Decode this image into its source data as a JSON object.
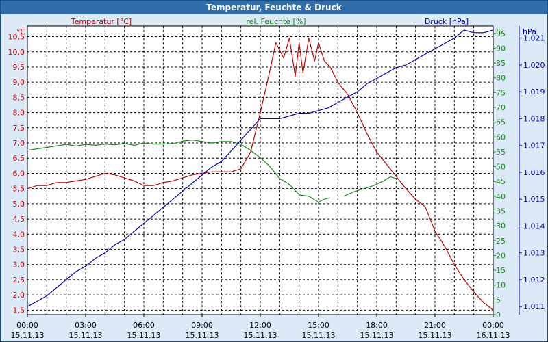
{
  "window_title": "Temperatur, Feuchte & Druck",
  "colors": {
    "temperature": "#c00000",
    "humidity": "#1a8a1a",
    "pressure": "#0000b4",
    "background": "#dce9f7",
    "plot": "#ffffff",
    "grid": "#000000"
  },
  "chart_data": {
    "type": "line",
    "title": "Temperatur, Feuchte & Druck",
    "x_ticks": [
      {
        "time": "00:00",
        "date": "15.11.13"
      },
      {
        "time": "03:00",
        "date": "15.11.13"
      },
      {
        "time": "06:00",
        "date": "15.11.13"
      },
      {
        "time": "09:00",
        "date": "15.11.13"
      },
      {
        "time": "12:00",
        "date": "15.11.13"
      },
      {
        "time": "15:00",
        "date": "15.11.13"
      },
      {
        "time": "18:00",
        "date": "15.11.13"
      },
      {
        "time": "21:00",
        "date": "15.11.13"
      },
      {
        "time": "00:00",
        "date": "16.11.13"
      }
    ],
    "xlim_hours": [
      0,
      24
    ],
    "axes": {
      "temperature": {
        "unit": "°C",
        "legend": "Temperatur [°C]",
        "ylim": [
          1.35,
          10.85
        ],
        "ticks": [
          "1,5",
          "2,0",
          "2,5",
          "3,0",
          "3,5",
          "4,0",
          "4,5",
          "5,0",
          "5,5",
          "6,0",
          "6,5",
          "7,0",
          "7,5",
          "8,0",
          "8,5",
          "9,0",
          "9,5",
          "10,0",
          "10,5"
        ]
      },
      "humidity": {
        "unit": "%",
        "legend": "rel. Feuchte [%]",
        "ylim": [
          0,
          97.5
        ],
        "ticks": [
          "0",
          "5",
          "10",
          "15",
          "20",
          "25",
          "30",
          "35",
          "40",
          "45",
          "50",
          "55",
          "60",
          "65",
          "70",
          "75",
          "80",
          "85",
          "90",
          "95"
        ]
      },
      "pressure": {
        "unit": "hPa",
        "legend": "Druck [hPa]",
        "ylim": [
          1010.7,
          1021.45
        ],
        "ticks": [
          "1.011",
          "1.012",
          "1.013",
          "1.014",
          "1.015",
          "1.016",
          "1.017",
          "1.018",
          "1.019",
          "1.020",
          "1.021"
        ]
      }
    },
    "series": [
      {
        "name": "Temperatur [°C]",
        "axis": "temperature",
        "x": [
          0,
          0.5,
          1,
          1.5,
          2,
          2.5,
          3,
          3.5,
          4,
          4.5,
          5,
          5.5,
          6,
          6.5,
          7,
          7.5,
          8,
          8.5,
          9,
          9.5,
          10,
          10.5,
          11,
          11.5,
          12,
          12.5,
          12.8,
          13.2,
          13.5,
          13.8,
          14,
          14.2,
          14.5,
          14.8,
          15,
          15.3,
          15.6,
          16,
          16.5,
          17,
          17.5,
          18,
          18.5,
          19,
          19.5,
          20,
          20.5,
          21,
          21.5,
          22,
          22.5,
          23,
          23.5,
          24
        ],
        "values": [
          5.5,
          5.6,
          5.6,
          5.7,
          5.7,
          5.75,
          5.8,
          5.9,
          6.0,
          5.95,
          5.85,
          5.75,
          5.6,
          5.6,
          5.7,
          5.75,
          5.85,
          5.95,
          6.0,
          6.05,
          6.05,
          6.05,
          6.15,
          6.7,
          8.0,
          9.4,
          10.3,
          9.8,
          10.45,
          9.2,
          10.3,
          9.3,
          10.45,
          9.7,
          10.3,
          9.7,
          9.5,
          9.0,
          8.6,
          8.0,
          7.3,
          6.7,
          6.3,
          5.9,
          5.5,
          5.15,
          4.9,
          4.1,
          3.6,
          3.0,
          2.5,
          2.1,
          1.75,
          1.5
        ]
      },
      {
        "name": "rel. Feuchte [%]",
        "axis": "humidity",
        "segments": [
          {
            "x": [
              0,
              0.5,
              1,
              1.5,
              2,
              2.5,
              3,
              3.5,
              4,
              4.5,
              5,
              5.5,
              6,
              6.5,
              7,
              7.5,
              8,
              8.5,
              9,
              9.5,
              10,
              10.5,
              11,
              11.5,
              12,
              12.5,
              13,
              13.5,
              14,
              14.5,
              15,
              15.3,
              15.6
            ],
            "values": [
              55.5,
              56,
              56.5,
              57,
              57.5,
              57,
              57.5,
              57.2,
              57.6,
              57.4,
              57.8,
              57.2,
              58.0,
              57.6,
              57.6,
              57.8,
              58.6,
              59.0,
              58.5,
              58.0,
              58.5,
              58.5,
              57.5,
              55.5,
              53.0,
              50.0,
              46.0,
              44.0,
              40.5,
              40.0,
              38.0,
              39.0,
              39.5
            ]
          },
          {
            "x": [
              16.3,
              16.8,
              17.3,
              17.8,
              18.3,
              18.7,
              19.0
            ],
            "values": [
              40.0,
              41.5,
              42.5,
              43.5,
              45.0,
              46.5,
              46.0
            ]
          }
        ]
      },
      {
        "name": "Druck [hPa]",
        "axis": "pressure",
        "x": [
          0,
          0.5,
          1,
          1.5,
          2,
          2.5,
          3,
          3.5,
          4,
          4.5,
          5,
          5.5,
          6,
          6.5,
          7,
          7.5,
          8,
          8.5,
          9,
          9.5,
          10,
          10.5,
          11,
          11.5,
          12,
          12.5,
          13,
          13.5,
          14,
          14.5,
          15,
          15.5,
          16,
          16.5,
          17,
          17.5,
          18,
          18.5,
          19,
          19.5,
          20,
          20.5,
          21,
          21.5,
          22,
          22.5,
          23,
          23.5,
          24
        ],
        "values": [
          1011.0,
          1011.2,
          1011.4,
          1011.7,
          1012.0,
          1012.3,
          1012.5,
          1012.8,
          1013.0,
          1013.3,
          1013.5,
          1013.8,
          1014.1,
          1014.4,
          1014.7,
          1015.0,
          1015.3,
          1015.6,
          1015.9,
          1016.2,
          1016.4,
          1016.8,
          1017.2,
          1017.6,
          1018.0,
          1018.0,
          1018.0,
          1018.1,
          1018.2,
          1018.2,
          1018.3,
          1018.4,
          1018.6,
          1018.8,
          1019.0,
          1019.3,
          1019.5,
          1019.7,
          1019.9,
          1020.0,
          1020.2,
          1020.4,
          1020.6,
          1020.8,
          1021.0,
          1021.3,
          1021.2,
          1021.2,
          1021.3
        ]
      }
    ]
  }
}
